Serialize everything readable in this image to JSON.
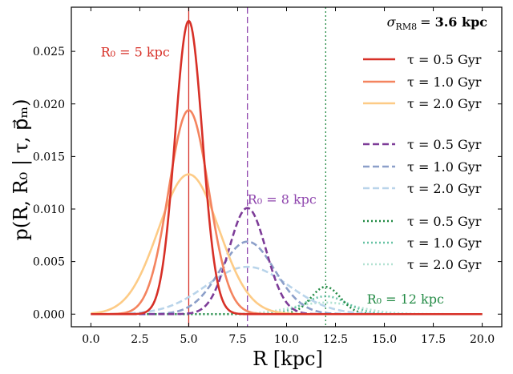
{
  "chart_data": {
    "type": "line",
    "xlabel": "R [kpc]",
    "ylabel": "p(R, R₀ | τ, p⃗ₘ)",
    "xlim": [
      -1,
      21
    ],
    "ylim": [
      -0.0012,
      0.0292
    ],
    "xticks": [
      0.0,
      2.5,
      5.0,
      7.5,
      10.0,
      12.5,
      15.0,
      17.5,
      20.0
    ],
    "xtick_labels": [
      "0.0",
      "2.5",
      "5.0",
      "7.5",
      "10.0",
      "12.5",
      "15.0",
      "17.5",
      "20.0"
    ],
    "yticks": [
      0.0,
      0.005,
      0.01,
      0.015,
      0.02,
      0.025
    ],
    "ytick_labels": [
      "0.000",
      "0.005",
      "0.010",
      "0.015",
      "0.020",
      "0.025"
    ],
    "legend_placement": "right",
    "sigma_label": "σ",
    "sigma_sub": "RM8",
    "sigma_eq": "= ",
    "sigma_value": "3.6 kpc",
    "annotations": [
      {
        "text": "R₀ = 5 kpc",
        "x": 0.5,
        "y": 0.0245,
        "color": "#d73027"
      },
      {
        "text": "R₀ = 8 kpc",
        "x": 8.0,
        "y": 0.0105,
        "color": "#8e44ad"
      },
      {
        "text": "R₀ = 12 kpc",
        "x": 14.1,
        "y": 0.001,
        "color": "#238b45"
      }
    ],
    "vertical_lines": [
      {
        "x": 5,
        "color": "#d73027",
        "style": "solid"
      },
      {
        "x": 8,
        "color": "#8e44ad",
        "style": "dashed"
      },
      {
        "x": 12,
        "color": "#238b45",
        "style": "dotted"
      }
    ],
    "series": [
      {
        "name": "τ = 0.5 Gyr",
        "group": "R0=5",
        "center": 5,
        "peak": 0.0279,
        "sigma": 0.7,
        "color": "#d73027",
        "style": "solid",
        "width": 2.6
      },
      {
        "name": "τ = 1.0 Gyr",
        "group": "R0=5",
        "center": 5,
        "peak": 0.0194,
        "sigma": 1.03,
        "color": "#f4845f",
        "style": "solid",
        "width": 2.6
      },
      {
        "name": "τ = 2.0 Gyr",
        "group": "R0=5",
        "center": 5,
        "peak": 0.0133,
        "sigma": 1.55,
        "color": "#fdcb86",
        "style": "solid",
        "width": 2.6
      },
      {
        "name": "τ = 0.5 Gyr",
        "group": "R0=8",
        "center": 8,
        "peak": 0.0101,
        "sigma": 0.95,
        "color": "#7d3c98",
        "style": "dashed",
        "width": 2.6
      },
      {
        "name": "τ = 1.0 Gyr",
        "group": "R0=8",
        "center": 8,
        "peak": 0.0069,
        "sigma": 1.4,
        "color": "#8c9fc9",
        "style": "dashed",
        "width": 2.6
      },
      {
        "name": "τ = 2.0 Gyr",
        "group": "R0=8",
        "center": 8,
        "peak": 0.0045,
        "sigma": 2.1,
        "color": "#b9d4ea",
        "style": "dashed",
        "width": 2.6
      },
      {
        "name": "τ = 0.5 Gyr",
        "group": "R0=12",
        "center": 12,
        "peak": 0.0026,
        "sigma": 0.75,
        "color": "#238b45",
        "style": "dotted",
        "width": 2.6
      },
      {
        "name": "τ = 1.0 Gyr",
        "group": "R0=12",
        "center": 12,
        "peak": 0.0017,
        "sigma": 1.1,
        "color": "#66c2a4",
        "style": "dotted",
        "width": 2.6
      },
      {
        "name": "τ = 2.0 Gyr",
        "group": "R0=12",
        "center": 12,
        "peak": 0.0011,
        "sigma": 1.65,
        "color": "#b2e2d2",
        "style": "dotted",
        "width": 2.6
      }
    ]
  }
}
